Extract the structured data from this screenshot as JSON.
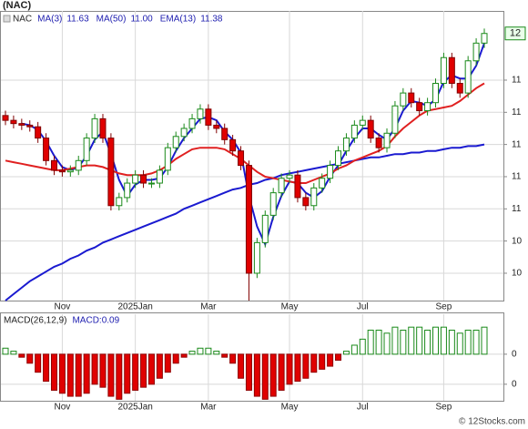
{
  "watermark": "© 12Stocks.com",
  "chart_data": [
    {
      "type": "candlestick",
      "title": "(NAC)",
      "name": "NAC",
      "categories": [
        null,
        null,
        null,
        null,
        null,
        null,
        null,
        "Nov",
        null,
        null,
        null,
        null,
        null,
        null,
        null,
        null,
        "2025Jan",
        null,
        null,
        null,
        null,
        null,
        null,
        null,
        null,
        "Mar",
        null,
        null,
        null,
        null,
        null,
        null,
        null,
        null,
        null,
        "May",
        null,
        null,
        null,
        null,
        null,
        null,
        null,
        null,
        "Jul",
        null,
        null,
        null,
        null,
        null,
        null,
        null,
        null,
        null,
        "Sep",
        null,
        null,
        null,
        null,
        null
      ],
      "open": [
        11.18,
        11.15,
        11.13,
        11.12,
        11.11,
        11.04,
        10.9,
        10.84,
        10.83,
        10.84,
        10.9,
        11.04,
        11.16,
        11.04,
        10.62,
        10.67,
        10.76,
        10.81,
        10.76,
        10.76,
        10.84,
        10.98,
        11.05,
        11.1,
        11.16,
        11.22,
        11.12,
        11.1,
        11.03,
        10.96,
        10.87,
        10.2,
        10.39,
        10.56,
        10.7,
        10.79,
        10.81,
        10.67,
        10.62,
        10.73,
        10.79,
        10.87,
        10.96,
        11.04,
        11.12,
        11.15,
        11.04,
        10.98,
        11.07,
        11.24,
        11.32,
        11.26,
        11.21,
        11.26,
        11.38,
        11.54,
        11.38,
        11.32,
        11.52,
        11.63
      ],
      "high": [
        11.21,
        11.18,
        11.16,
        11.15,
        11.14,
        11.07,
        10.93,
        10.87,
        10.87,
        10.93,
        11.07,
        11.19,
        11.19,
        11.07,
        10.7,
        10.79,
        10.84,
        10.84,
        10.79,
        10.87,
        11.01,
        11.08,
        11.13,
        11.19,
        11.25,
        11.25,
        11.15,
        11.13,
        11.06,
        10.99,
        10.9,
        10.42,
        10.59,
        10.73,
        10.82,
        10.84,
        10.84,
        10.7,
        10.76,
        10.82,
        10.9,
        10.99,
        11.07,
        11.15,
        11.18,
        11.18,
        11.07,
        11.1,
        11.27,
        11.35,
        11.35,
        11.29,
        11.29,
        11.41,
        11.57,
        11.57,
        11.41,
        11.55,
        11.66,
        11.72
      ],
      "low": [
        11.12,
        11.1,
        11.09,
        11.08,
        11.01,
        10.87,
        10.81,
        10.8,
        10.8,
        10.81,
        10.87,
        11.01,
        11.01,
        10.59,
        10.59,
        10.64,
        10.73,
        10.73,
        10.73,
        10.73,
        10.81,
        10.95,
        11.02,
        11.07,
        11.13,
        11.09,
        11.07,
        11.0,
        10.93,
        10.84,
        10.03,
        10.17,
        10.36,
        10.53,
        10.67,
        10.76,
        10.64,
        10.59,
        10.59,
        10.7,
        10.76,
        10.84,
        10.93,
        11.01,
        11.09,
        11.01,
        10.95,
        10.95,
        11.04,
        11.21,
        11.23,
        11.18,
        11.18,
        11.23,
        11.35,
        11.35,
        11.29,
        11.29,
        11.49,
        11.6
      ],
      "close": [
        11.15,
        11.13,
        11.12,
        11.11,
        11.04,
        10.9,
        10.84,
        10.83,
        10.84,
        10.9,
        11.04,
        11.16,
        11.04,
        10.62,
        10.67,
        10.76,
        10.81,
        10.76,
        10.76,
        10.84,
        10.98,
        11.05,
        11.1,
        11.16,
        11.22,
        11.12,
        11.1,
        11.03,
        10.96,
        10.87,
        10.2,
        10.39,
        10.56,
        10.7,
        10.79,
        10.81,
        10.67,
        10.62,
        10.73,
        10.79,
        10.87,
        10.96,
        11.04,
        11.12,
        11.15,
        11.04,
        10.98,
        11.07,
        11.24,
        11.32,
        11.26,
        11.21,
        11.26,
        11.38,
        11.54,
        11.38,
        11.32,
        11.52,
        11.63,
        11.69
      ],
      "up_color": "#1a8a1a",
      "down_color": "#e00000",
      "series": [
        {
          "name": "MA(3)",
          "color": "#1a1ad0",
          "legend_value": 11.63,
          "values": [
            null,
            null,
            11.13,
            11.12,
            11.09,
            11.02,
            10.93,
            10.86,
            10.84,
            10.86,
            10.93,
            11.03,
            11.08,
            10.94,
            10.78,
            10.68,
            10.75,
            10.78,
            10.78,
            10.79,
            10.86,
            10.96,
            11.04,
            11.1,
            11.16,
            11.17,
            11.15,
            11.08,
            11.03,
            10.95,
            10.68,
            10.49,
            10.38,
            10.55,
            10.68,
            10.77,
            10.76,
            10.7,
            10.67,
            10.71,
            10.8,
            10.87,
            10.96,
            11.04,
            11.1,
            11.1,
            11.06,
            11.03,
            11.1,
            11.21,
            11.27,
            11.26,
            11.24,
            11.28,
            11.39,
            11.43,
            11.41,
            11.41,
            11.49,
            11.63
          ]
        },
        {
          "name": "MA(50)",
          "color": "#1a1ad0",
          "legend_value": {
            "value": 11,
            "label": "11.00"
          },
          "values": [
            10.03,
            10.07,
            10.11,
            10.15,
            10.18,
            10.21,
            10.24,
            10.26,
            10.29,
            10.31,
            10.34,
            10.36,
            10.39,
            10.41,
            10.43,
            10.45,
            10.47,
            10.49,
            10.51,
            10.53,
            10.55,
            10.57,
            10.6,
            10.62,
            10.64,
            10.66,
            10.68,
            10.7,
            10.72,
            10.73,
            10.75,
            10.76,
            10.78,
            10.79,
            10.81,
            10.82,
            10.83,
            10.84,
            10.85,
            10.86,
            10.87,
            10.88,
            10.89,
            10.9,
            10.91,
            10.92,
            10.92,
            10.93,
            10.94,
            10.94,
            10.95,
            10.95,
            10.96,
            10.96,
            10.97,
            10.98,
            10.98,
            10.99,
            10.99,
            11.0
          ]
        },
        {
          "name": "EMA(13)",
          "color": "#e02020",
          "legend_value": 11.38,
          "values": [
            10.9,
            10.89,
            10.88,
            10.87,
            10.86,
            10.85,
            10.84,
            10.84,
            10.85,
            10.86,
            10.87,
            10.87,
            10.86,
            10.84,
            10.82,
            10.81,
            10.81,
            10.81,
            10.82,
            10.84,
            10.87,
            10.91,
            10.94,
            10.97,
            10.98,
            10.98,
            10.98,
            10.97,
            10.94,
            10.91,
            10.87,
            10.83,
            10.8,
            10.79,
            10.78,
            10.77,
            10.76,
            10.76,
            10.78,
            10.8,
            10.82,
            10.85,
            10.87,
            10.9,
            10.92,
            10.94,
            10.96,
            10.99,
            11.05,
            11.1,
            11.14,
            11.18,
            11.21,
            11.22,
            11.23,
            11.24,
            11.27,
            11.31,
            11.35,
            11.38
          ]
        }
      ],
      "ylim": [
        10.03,
        11.83
      ],
      "yticks": [
        {
          "value": 10.2,
          "label": "10"
        },
        {
          "value": 10.4,
          "label": "10"
        },
        {
          "value": 10.6,
          "label": "11"
        },
        {
          "value": 10.8,
          "label": "11"
        },
        {
          "value": 11,
          "label": "11"
        },
        {
          "value": 11.2,
          "label": "11"
        },
        {
          "value": 11.4,
          "label": "11"
        }
      ],
      "last_price": {
        "value": 11.69,
        "label": "12"
      },
      "grid": true
    },
    {
      "type": "bar",
      "title": "MACD(26,12,9)",
      "legend_value": {
        "value": 0.09,
        "label": "MACD:0.09"
      },
      "categories": [
        null,
        null,
        null,
        null,
        null,
        null,
        null,
        "Nov",
        null,
        null,
        null,
        null,
        null,
        null,
        null,
        null,
        "2025Jan",
        null,
        null,
        null,
        null,
        null,
        null,
        null,
        null,
        "Mar",
        null,
        null,
        null,
        null,
        null,
        null,
        null,
        null,
        null,
        "May",
        null,
        null,
        null,
        null,
        null,
        null,
        null,
        null,
        "Jul",
        null,
        null,
        null,
        null,
        null,
        null,
        null,
        null,
        null,
        "Sep",
        null,
        null,
        null,
        null,
        null
      ],
      "values": [
        0.02,
        0.01,
        -0.01,
        -0.03,
        -0.06,
        -0.09,
        -0.12,
        -0.13,
        -0.14,
        -0.14,
        -0.13,
        -0.1,
        -0.11,
        -0.14,
        -0.15,
        -0.13,
        -0.12,
        -0.11,
        -0.1,
        -0.08,
        -0.06,
        -0.03,
        -0.01,
        0.01,
        0.02,
        0.02,
        0.01,
        -0.01,
        -0.03,
        -0.08,
        -0.12,
        -0.14,
        -0.15,
        -0.14,
        -0.12,
        -0.1,
        -0.09,
        -0.08,
        -0.06,
        -0.05,
        -0.04,
        -0.02,
        0.01,
        0.03,
        0.05,
        0.08,
        0.08,
        0.07,
        0.09,
        0.08,
        0.09,
        0.09,
        0.08,
        0.09,
        0.09,
        0.08,
        0.07,
        0.08,
        0.08,
        0.09
      ],
      "up_color": "#1a8a1a",
      "down_color": "#e00000",
      "ylim": [
        -0.155,
        0.133
      ],
      "yticks": [
        {
          "value": 0,
          "label": "0"
        },
        {
          "value": -0.1,
          "label": "0"
        }
      ],
      "grid": true
    }
  ]
}
